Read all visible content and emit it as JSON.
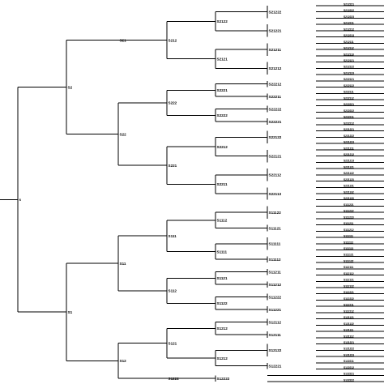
{
  "tree": {
    "label": "s",
    "children": [
      {
        "label": "S2",
        "children": [
          {
            "label": "S21",
            "children": [
              {
                "label": "S212",
                "children": [
                  {
                    "label": "S2122",
                    "children": [
                      {
                        "label": "S21222",
                        "leaves": [
                          "S212221",
                          "S212222",
                          "S212223"
                        ]
                      },
                      {
                        "label": "S21221",
                        "leaves": [
                          "S212211",
                          "S212212",
                          "S212213"
                        ]
                      }
                    ]
                  },
                  {
                    "label": "S2121",
                    "children": [
                      {
                        "label": "S21211",
                        "leaves": [
                          "S212111",
                          "S212112",
                          "S212113"
                        ]
                      },
                      {
                        "label": "S21212",
                        "leaves": [
                          "S212121",
                          "S212122",
                          "S212123"
                        ]
                      }
                    ]
                  }
                ]
              }
            ]
          },
          {
            "label": "S22",
            "children": [
              {
                "label": "S222",
                "children": [
                  {
                    "label": "S2221",
                    "children": [
                      {
                        "label": "S22212",
                        "leaves": [
                          "S222121",
                          "S222122"
                        ]
                      },
                      {
                        "label": "S22211",
                        "leaves": [
                          "S222111",
                          "S222112"
                        ]
                      }
                    ]
                  },
                  {
                    "label": "S2222",
                    "children": [
                      {
                        "label": "S22222",
                        "leaves": [
                          "S222221",
                          "S222222"
                        ]
                      },
                      {
                        "label": "S22221",
                        "leaves": [
                          "S222211",
                          "S222212"
                        ]
                      }
                    ]
                  }
                ]
              },
              {
                "label": "S221",
                "children": [
                  {
                    "label": "S2212",
                    "children": [
                      {
                        "label": "S22122",
                        "leaves": [
                          "S221221",
                          "S221222",
                          "S221223"
                        ]
                      },
                      {
                        "label": "S22121",
                        "leaves": [
                          "S221211",
                          "S221212",
                          "S221213"
                        ]
                      }
                    ]
                  },
                  {
                    "label": "S2211",
                    "children": [
                      {
                        "label": "S22112",
                        "leaves": [
                          "S221121",
                          "S221122",
                          "S221123"
                        ]
                      },
                      {
                        "label": "S22113",
                        "leaves": [
                          "S221131",
                          "S221132",
                          "S221133"
                        ]
                      }
                    ]
                  }
                ]
              }
            ]
          }
        ]
      },
      {
        "label": "S1",
        "children": [
          {
            "label": "S11",
            "children": [
              {
                "label": "S111",
                "children": [
                  {
                    "label": "S1112",
                    "children": [
                      {
                        "label": "S11122",
                        "leaves": [
                          "S111221",
                          "S111222",
                          "S111223"
                        ]
                      },
                      {
                        "label": "S11121",
                        "leaves": [
                          "S111211",
                          "S111212"
                        ]
                      }
                    ]
                  },
                  {
                    "label": "S1111",
                    "children": [
                      {
                        "label": "S11111",
                        "leaves": [
                          "S111111",
                          "S111112",
                          "S111113"
                        ]
                      },
                      {
                        "label": "S11112",
                        "leaves": [
                          "S111121",
                          "S111122"
                        ]
                      }
                    ]
                  }
                ]
              },
              {
                "label": "S112",
                "children": [
                  {
                    "label": "S1121",
                    "children": [
                      {
                        "label": "S11211",
                        "leaves": [
                          "S112111",
                          "S112112"
                        ]
                      },
                      {
                        "label": "S11212",
                        "leaves": [
                          "S112121",
                          "S112122"
                        ]
                      }
                    ]
                  },
                  {
                    "label": "S1122",
                    "children": [
                      {
                        "label": "S11222",
                        "leaves": [
                          "S112221",
                          "S112222"
                        ]
                      },
                      {
                        "label": "S11221",
                        "leaves": [
                          "S112211",
                          "S112212"
                        ]
                      }
                    ]
                  }
                ]
              }
            ]
          },
          {
            "label": "S12",
            "children": [
              {
                "label": "S121",
                "children": [
                  {
                    "label": "S1212",
                    "children": [
                      {
                        "label": "S12112",
                        "leaves": [
                          "S121121",
                          "S121122"
                        ]
                      },
                      {
                        "label": "S12111",
                        "leaves": [
                          "S121111",
                          "S121112"
                        ]
                      }
                    ]
                  },
                  {
                    "label": "S1212",
                    "children": [
                      {
                        "label": "S12122",
                        "leaves": [
                          "S121221",
                          "S121222",
                          "S121223"
                        ]
                      },
                      {
                        "label": "S12221",
                        "leaves": [
                          "S122211",
                          "S122212"
                        ]
                      }
                    ]
                  }
                ]
              },
              {
                "label": "S1222",
                "children": [
                  {
                    "label": "S12222",
                    "leaves": [
                      "S122221",
                      "S122222"
                    ]
                  }
                ]
              }
            ]
          }
        ]
      }
    ]
  }
}
